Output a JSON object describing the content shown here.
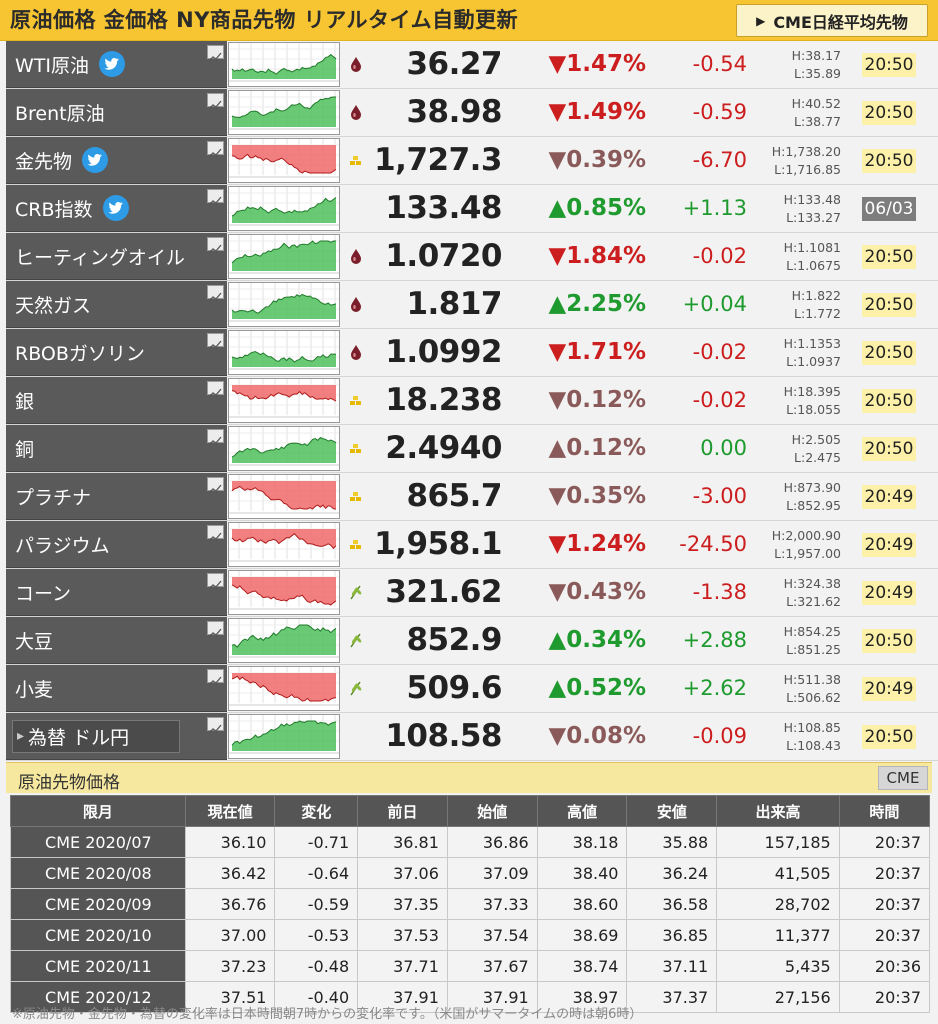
{
  "header": {
    "title": "原油価格 金価格 NY商品先物 リアルタイム自動更新",
    "button_label": "CME日経平均先物"
  },
  "rows": [
    {
      "name": "WTI原油",
      "twitter": true,
      "badge": "oil-drop-icon",
      "price": "36.27",
      "pct": "▼1.47%",
      "pct_class": "down-strong",
      "change": "-0.54",
      "change_class": "down",
      "high": "H:38.17",
      "low": "L:35.89",
      "time": "20:50",
      "time_style": "normal",
      "chart_color": "green"
    },
    {
      "name": "Brent原油",
      "twitter": false,
      "badge": "oil-drop-icon",
      "price": "38.98",
      "pct": "▼1.49%",
      "pct_class": "down-strong",
      "change": "-0.59",
      "change_class": "down",
      "high": "H:40.52",
      "low": "L:38.77",
      "time": "20:50",
      "time_style": "normal",
      "chart_color": "green"
    },
    {
      "name": "金先物",
      "twitter": true,
      "badge": "gold-bar-icon",
      "price": "1,727.3",
      "pct": "▼0.39%",
      "pct_class": "down-weak",
      "change": "-6.70",
      "change_class": "down",
      "high": "H:1,738.20",
      "low": "L:1,716.85",
      "time": "20:50",
      "time_style": "normal",
      "chart_color": "red"
    },
    {
      "name": "CRB指数",
      "twitter": true,
      "badge": "",
      "price": "133.48",
      "pct": "▲0.85%",
      "pct_class": "up",
      "change": "+1.13",
      "change_class": "up",
      "high": "H:133.48",
      "low": "L:133.27",
      "time": "06/03",
      "time_style": "gray",
      "chart_color": "green"
    },
    {
      "name": "ヒーティングオイル",
      "twitter": false,
      "badge": "oil-drop-icon",
      "price": "1.0720",
      "pct": "▼1.84%",
      "pct_class": "down-strong",
      "change": "-0.02",
      "change_class": "down",
      "high": "H:1.1081",
      "low": "L:1.0675",
      "time": "20:50",
      "time_style": "normal",
      "chart_color": "green"
    },
    {
      "name": "天然ガス",
      "twitter": false,
      "badge": "oil-drop-icon",
      "price": "1.817",
      "pct": "▲2.25%",
      "pct_class": "up",
      "change": "+0.04",
      "change_class": "up",
      "high": "H:1.822",
      "low": "L:1.772",
      "time": "20:50",
      "time_style": "normal",
      "chart_color": "green"
    },
    {
      "name": "RBOBガソリン",
      "twitter": false,
      "badge": "oil-drop-icon",
      "price": "1.0992",
      "pct": "▼1.71%",
      "pct_class": "down-strong",
      "change": "-0.02",
      "change_class": "down",
      "high": "H:1.1353",
      "low": "L:1.0937",
      "time": "20:50",
      "time_style": "normal",
      "chart_color": "green"
    },
    {
      "name": "銀",
      "twitter": false,
      "badge": "gold-bar-icon",
      "price": "18.238",
      "pct": "▼0.12%",
      "pct_class": "down-weak",
      "change": "-0.02",
      "change_class": "down",
      "high": "H:18.395",
      "low": "L:18.055",
      "time": "20:50",
      "time_style": "normal",
      "chart_color": "red"
    },
    {
      "name": "銅",
      "twitter": false,
      "badge": "gold-bar-icon",
      "price": "2.4940",
      "pct": "▲0.12%",
      "pct_class": "down-weak",
      "change": "0.00",
      "change_class": "up",
      "high": "H:2.505",
      "low": "L:2.475",
      "time": "20:50",
      "time_style": "normal",
      "chart_color": "green"
    },
    {
      "name": "プラチナ",
      "twitter": false,
      "badge": "gold-bar-icon",
      "price": "865.7",
      "pct": "▼0.35%",
      "pct_class": "down-weak",
      "change": "-3.00",
      "change_class": "down",
      "high": "H:873.90",
      "low": "L:852.95",
      "time": "20:49",
      "time_style": "normal",
      "chart_color": "red"
    },
    {
      "name": "パラジウム",
      "twitter": false,
      "badge": "gold-bar-icon",
      "price": "1,958.1",
      "pct": "▼1.24%",
      "pct_class": "down-strong",
      "change": "-24.50",
      "change_class": "down",
      "high": "H:2,000.90",
      "low": "L:1,957.00",
      "time": "20:49",
      "time_style": "normal",
      "chart_color": "red"
    },
    {
      "name": "コーン",
      "twitter": false,
      "badge": "wheat-icon",
      "price": "321.62",
      "pct": "▼0.43%",
      "pct_class": "down-weak",
      "change": "-1.38",
      "change_class": "down",
      "high": "H:324.38",
      "low": "L:321.62",
      "time": "20:49",
      "time_style": "normal",
      "chart_color": "red"
    },
    {
      "name": "大豆",
      "twitter": false,
      "badge": "wheat-icon",
      "price": "852.9",
      "pct": "▲0.34%",
      "pct_class": "up",
      "change": "+2.88",
      "change_class": "up",
      "high": "H:854.25",
      "low": "L:851.25",
      "time": "20:50",
      "time_style": "normal",
      "chart_color": "green"
    },
    {
      "name": "小麦",
      "twitter": false,
      "badge": "wheat-icon",
      "price": "509.6",
      "pct": "▲0.52%",
      "pct_class": "up",
      "change": "+2.62",
      "change_class": "up",
      "high": "H:511.38",
      "low": "L:506.62",
      "time": "20:49",
      "time_style": "normal",
      "chart_color": "red"
    },
    {
      "name": "為替 ドル円",
      "twitter": false,
      "badge": "",
      "price": "108.58",
      "pct": "▼0.08%",
      "pct_class": "down-weak",
      "change": "-0.09",
      "change_class": "down",
      "high": "H:108.85",
      "low": "L:108.43",
      "time": "20:50",
      "time_style": "normal",
      "chart_color": "green",
      "fx": true
    }
  ],
  "futures": {
    "section_title": "原油先物価格",
    "cme_label": "CME",
    "columns": [
      "限月",
      "現在値",
      "変化",
      "前日",
      "始値",
      "高値",
      "安値",
      "出来高",
      "時間"
    ],
    "rows": [
      [
        "CME 2020/07",
        "36.10",
        "-0.71",
        "36.81",
        "36.86",
        "38.18",
        "35.88",
        "157,185",
        "20:37"
      ],
      [
        "CME 2020/08",
        "36.42",
        "-0.64",
        "37.06",
        "37.09",
        "38.40",
        "36.24",
        "41,505",
        "20:37"
      ],
      [
        "CME 2020/09",
        "36.76",
        "-0.59",
        "37.35",
        "37.33",
        "38.60",
        "36.58",
        "28,702",
        "20:37"
      ],
      [
        "CME 2020/10",
        "37.00",
        "-0.53",
        "37.53",
        "37.54",
        "38.69",
        "36.85",
        "11,377",
        "20:37"
      ],
      [
        "CME 2020/11",
        "37.23",
        "-0.48",
        "37.71",
        "37.67",
        "38.74",
        "37.11",
        "5,435",
        "20:36"
      ],
      [
        "CME 2020/12",
        "37.51",
        "-0.40",
        "37.91",
        "37.91",
        "38.97",
        "37.37",
        "27,156",
        "20:37"
      ]
    ]
  },
  "note": "※原油先物・金先物・為替の変化率は日本時間朝7時からの変化率です。（米国がサマータイムの時は朝6時）",
  "colors": {
    "header": "#f7c531",
    "up": "#1e9a2e",
    "down": "#cc1e1e",
    "name_bg": "#5a5a5a"
  }
}
